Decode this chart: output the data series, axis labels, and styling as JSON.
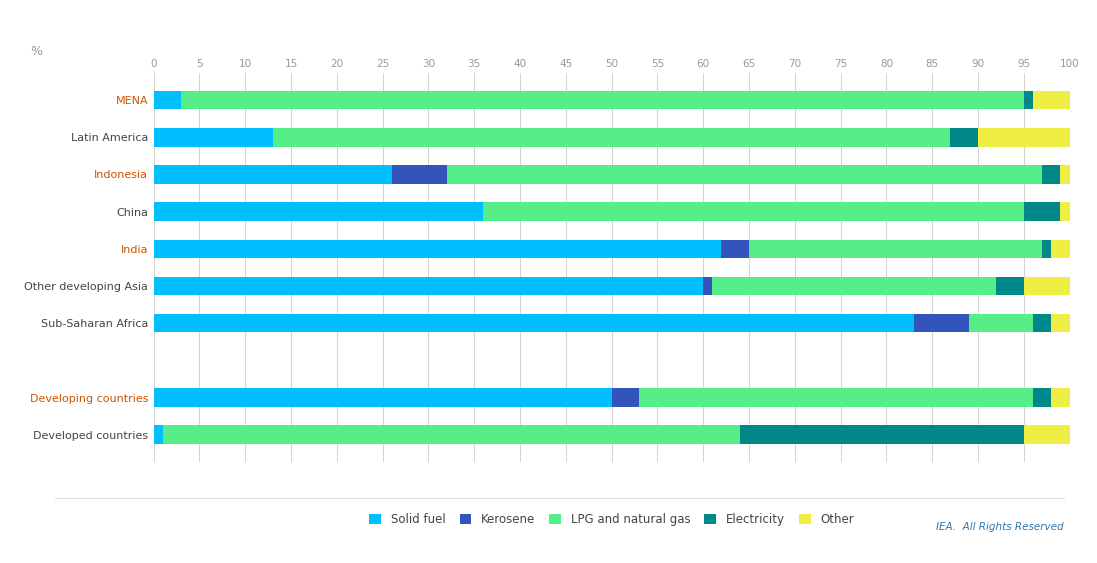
{
  "categories": [
    "MENA",
    "Latin America",
    "Indonesia",
    "China",
    "India",
    "Other developing Asia",
    "Sub-Saharan Africa",
    "",
    "Developing countries",
    "Developed countries"
  ],
  "series": {
    "Solid fuel": [
      3,
      13,
      26,
      36,
      62,
      60,
      83,
      0,
      50,
      1
    ],
    "Kerosene": [
      0,
      0,
      6,
      0,
      3,
      1,
      6,
      0,
      3,
      0
    ],
    "LPG and natural gas": [
      92,
      74,
      65,
      59,
      32,
      31,
      7,
      0,
      43,
      63
    ],
    "Electricity": [
      1,
      3,
      2,
      4,
      1,
      3,
      2,
      0,
      2,
      31
    ],
    "Other": [
      4,
      10,
      1,
      1,
      2,
      5,
      2,
      0,
      2,
      5
    ]
  },
  "colors": {
    "Solid fuel": "#00BFFF",
    "Kerosene": "#3355BB",
    "LPG and natural gas": "#55EE88",
    "Electricity": "#008888",
    "Other": "#EEEE44"
  },
  "highlighted_labels": [
    "MENA",
    "Indonesia",
    "India",
    "Developing countries"
  ],
  "normal_label_color": "#444444",
  "highlight_label_color": "#CC5500",
  "title_ylabel": "%",
  "credit": "IEA.  All Rights Reserved",
  "xlim": [
    0,
    100
  ],
  "xticks": [
    0,
    5,
    10,
    15,
    20,
    25,
    30,
    35,
    40,
    45,
    50,
    55,
    60,
    65,
    70,
    75,
    80,
    85,
    90,
    95,
    100
  ],
  "bar_height": 0.5,
  "figsize": [
    10.97,
    5.63
  ],
  "dpi": 100
}
